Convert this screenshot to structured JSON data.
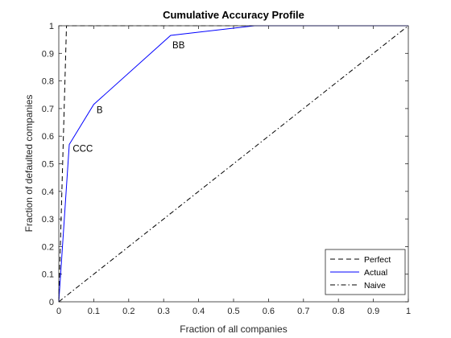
{
  "chart_data": {
    "type": "line",
    "title": "Cumulative Accuracy Profile",
    "xlabel": "Fraction of all companies",
    "ylabel": "Fraction of defaulted companies",
    "xlim": [
      0,
      1
    ],
    "ylim": [
      0,
      1
    ],
    "xticks": [
      "0",
      "0.1",
      "0.2",
      "0.3",
      "0.4",
      "0.5",
      "0.6",
      "0.7",
      "0.8",
      "0.9",
      "1"
    ],
    "yticks": [
      "0",
      "0.1",
      "0.2",
      "0.3",
      "0.4",
      "0.5",
      "0.6",
      "0.7",
      "0.8",
      "0.9",
      "1"
    ],
    "grid": false,
    "legend_position": "bottom-right",
    "series": [
      {
        "name": "Perfect",
        "color": "#000000",
        "style": "dashed",
        "x": [
          0,
          0.022,
          1
        ],
        "y": [
          0,
          1,
          1
        ]
      },
      {
        "name": "Actual",
        "color": "#0000ff",
        "style": "solid",
        "x": [
          0,
          0.03,
          0.1,
          0.32,
          0.56,
          1
        ],
        "y": [
          0,
          0.57,
          0.715,
          0.965,
          1,
          1
        ]
      },
      {
        "name": "Naive",
        "color": "#000000",
        "style": "dashdot",
        "x": [
          0,
          1
        ],
        "y": [
          0,
          1
        ]
      }
    ],
    "annotations": [
      {
        "text": "CCC",
        "x": 0.04,
        "y": 0.555
      },
      {
        "text": "B",
        "x": 0.108,
        "y": 0.695
      },
      {
        "text": "BB",
        "x": 0.325,
        "y": 0.93
      }
    ]
  }
}
